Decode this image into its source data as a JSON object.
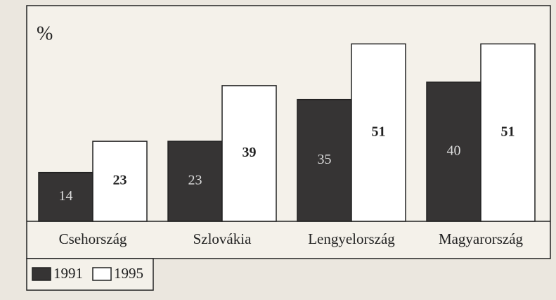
{
  "chart_data": {
    "type": "bar",
    "y_label": "%",
    "categories": [
      "Csehország",
      "Szlovákia",
      "Lengyelország",
      "Magyarország"
    ],
    "series": [
      {
        "name": "1991",
        "color": "#363434",
        "values": [
          14,
          23,
          35,
          40
        ]
      },
      {
        "name": "1995",
        "color": "#ffffff",
        "values": [
          23,
          39,
          51,
          51
        ]
      }
    ],
    "ylim": [
      0,
      62
    ]
  }
}
